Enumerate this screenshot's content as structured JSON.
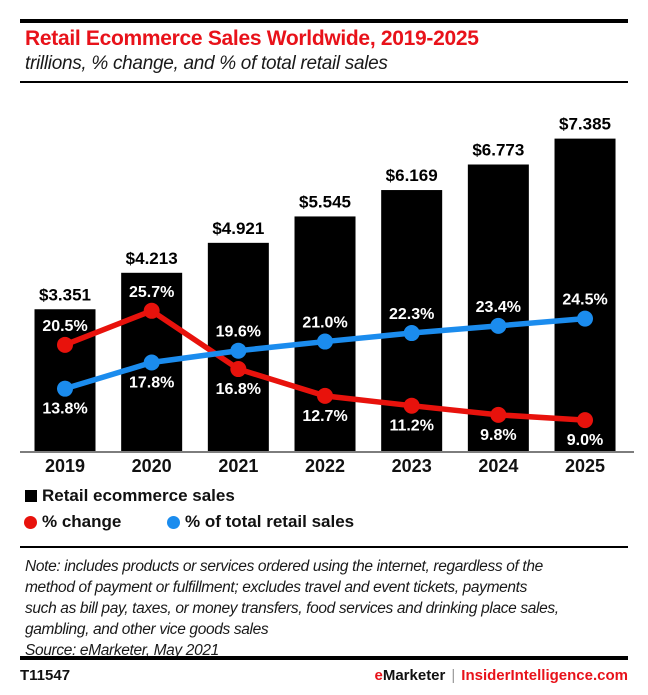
{
  "colors": {
    "brand_red": "#e8121a",
    "line_red": "#e8120c",
    "line_blue": "#1b8cee",
    "bar_black": "#000000",
    "axis_gray": "#7d7d7d"
  },
  "header": {
    "title": "Retail Ecommerce Sales Worldwide, 2019-2025",
    "subtitle": "trillions, % change, and % of total retail sales"
  },
  "chart_data": {
    "type": "bar",
    "title": "Retail Ecommerce Sales Worldwide, 2019-2025",
    "subtitle": "trillions, % change, and % of total retail sales",
    "categories": [
      "2019",
      "2020",
      "2021",
      "2022",
      "2023",
      "2024",
      "2025"
    ],
    "series": [
      {
        "name": "Retail ecommerce sales",
        "type": "bar",
        "unit": "USD trillions",
        "color": "#000000",
        "values": [
          3.351,
          4.213,
          4.921,
          5.545,
          6.169,
          6.773,
          7.385
        ],
        "labels": [
          "$3.351",
          "$4.213",
          "$4.921",
          "$5.545",
          "$6.169",
          "$6.773",
          "$7.385"
        ]
      },
      {
        "name": "% change",
        "type": "line",
        "unit": "%",
        "color": "#e8120c",
        "values": [
          20.5,
          25.7,
          16.8,
          12.7,
          11.2,
          9.8,
          9.0
        ],
        "labels": [
          "20.5%",
          "25.7%",
          "16.8%",
          "12.7%",
          "11.2%",
          "9.8%",
          "9.0%"
        ],
        "label_positions": [
          "above",
          "above",
          "below",
          "below",
          "below",
          "below",
          "below"
        ]
      },
      {
        "name": "% of total retail sales",
        "type": "line",
        "unit": "%",
        "color": "#1b8cee",
        "values": [
          13.8,
          17.8,
          19.6,
          21.0,
          22.3,
          23.4,
          24.5
        ],
        "labels": [
          "13.8%",
          "17.8%",
          "19.6%",
          "21.0%",
          "22.3%",
          "23.4%",
          "24.5%"
        ],
        "label_positions": [
          "below",
          "below",
          "above",
          "above",
          "above",
          "above",
          "above"
        ]
      }
    ],
    "value_axis_visible": false,
    "grid": false,
    "legend_position": "bottom"
  },
  "legend": {
    "items": [
      {
        "label": "Retail ecommerce sales",
        "swatch": "square",
        "color": "#000000"
      },
      {
        "label": "% change",
        "swatch": "circle",
        "color": "#e8120c"
      },
      {
        "label": "% of total retail sales",
        "swatch": "circle",
        "color": "#1b8cee"
      }
    ]
  },
  "note": {
    "lines": [
      "Note: includes products or services ordered using the internet, regardless of the",
      "method of payment or fulfillment; excludes travel and event tickets, payments",
      "such as bill pay, taxes, or money transfers, food services and drinking place sales,",
      "gambling, and other vice goods sales",
      "Source: eMarketer, May 2021"
    ]
  },
  "footer": {
    "chart_id": "T11547",
    "brand_e": "e",
    "brand_rest": "Marketer",
    "separator": "|",
    "site": "InsiderIntelligence.com"
  }
}
